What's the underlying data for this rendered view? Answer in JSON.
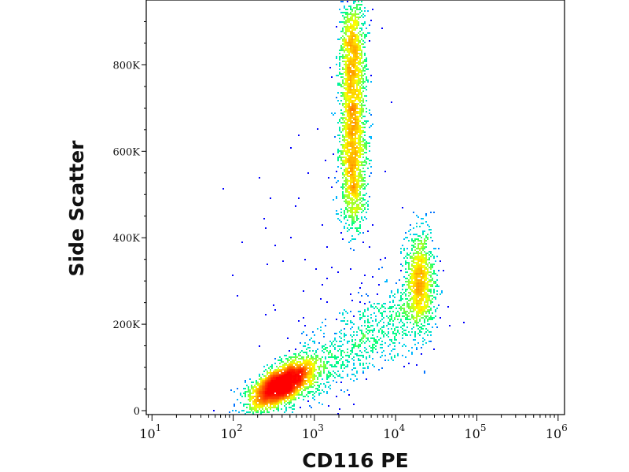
{
  "chart_data": {
    "type": "scatter",
    "subtype": "flow-cytometry density dot plot",
    "title": "",
    "xlabel": "CD116 PE",
    "ylabel": "Side Scatter",
    "x_scale": "log",
    "xlim": [
      8.5,
      1200000
    ],
    "ylim": [
      0,
      950000
    ],
    "x_ticks": [
      {
        "value": 10,
        "base": "10",
        "exp": "1"
      },
      {
        "value": 100,
        "base": "10",
        "exp": "2"
      },
      {
        "value": 1000,
        "base": "10",
        "exp": "3"
      },
      {
        "value": 10000,
        "base": "10",
        "exp": "4"
      },
      {
        "value": 100000,
        "base": "10",
        "exp": "5"
      },
      {
        "value": 1000000,
        "base": "10",
        "exp": "6"
      }
    ],
    "y_ticks": [
      {
        "value": 0,
        "label": "0"
      },
      {
        "value": 200000,
        "label": "200K"
      },
      {
        "value": 400000,
        "label": "400K"
      },
      {
        "value": 600000,
        "label": "600K"
      },
      {
        "value": 800000,
        "label": "800K"
      }
    ],
    "grid": false,
    "legend": "none",
    "colormap": [
      "#0000ff",
      "#00c8ff",
      "#00ff80",
      "#ffff00",
      "#ff0000"
    ],
    "populations": [
      {
        "x_center": 400,
        "y_center": 60000,
        "x_log_sd": 0.2,
        "y_sd": 28000,
        "count": 3200
      },
      {
        "x_center": 3000,
        "y_center": 690000,
        "x_log_sd": 0.08,
        "y_sd": 140000,
        "count": 3000
      },
      {
        "x_center": 20000,
        "y_center": 300000,
        "x_log_sd": 0.09,
        "y_sd": 60000,
        "count": 1100
      },
      {
        "x_center": 4000,
        "y_center": 170000,
        "x_log_sd": 0.3,
        "y_sd": 45000,
        "count": 900
      },
      {
        "x_center": 1500,
        "y_center": 300000,
        "x_log_sd": 0.6,
        "y_sd": 200000,
        "count": 80
      }
    ]
  }
}
